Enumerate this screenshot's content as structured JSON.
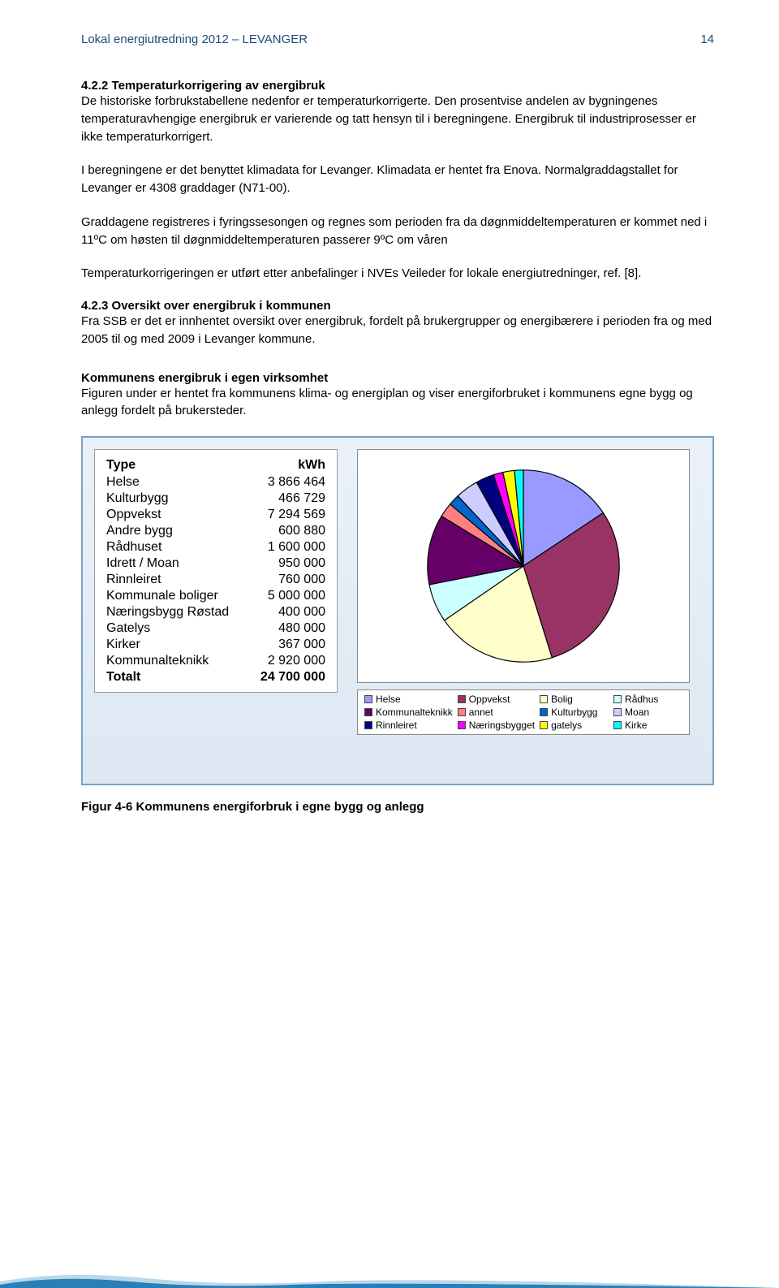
{
  "header": {
    "title": "Lokal energiutredning 2012 – LEVANGER",
    "page": "14"
  },
  "s422": {
    "heading": "4.2.2 Temperaturkorrigering av energibruk",
    "p1": "De historiske forbrukstabellene nedenfor er temperaturkorrigerte. Den prosentvise andelen av bygningenes temperaturavhengige energibruk er varierende og tatt hensyn til i beregningene. Energibruk til industriprosesser er ikke temperaturkorrigert.",
    "p2": "I beregningene er det benyttet klimadata for Levanger. Klimadata er hentet fra Enova. Normalgraddagstallet for Levanger er 4308 graddager (N71-00).",
    "p3a": "Graddagene registreres i fyringssesongen og regnes som perioden fra da døgnmiddeltemperaturen er kommet ned i 11",
    "p3deg1": "º",
    "p3b": "C om høsten til døgnmiddeltemperaturen passerer 9",
    "p3deg2": "º",
    "p3c": "C om våren",
    "p4": "Temperaturkorrigeringen er utført etter anbefalinger i NVEs Veileder for lokale energiutredninger, ref. [8]."
  },
  "s423": {
    "heading": "4.2.3 Oversikt over energibruk i kommunen",
    "p1": "Fra SSB er det er innhentet oversikt over energibruk, fordelt på brukergrupper og energibærere i perioden fra og med 2005 til og med 2009 i Levanger kommune.",
    "sub_heading": "Kommunens energibruk i egen virksomhet",
    "p2": "Figuren under er hentet fra kommunens klima- og energiplan og viser energiforbruket i kommunens egne bygg og anlegg fordelt på brukersteder."
  },
  "table": {
    "col1": "Type",
    "col2": "kWh",
    "rows": [
      {
        "label": "Helse",
        "value": "3 866 464"
      },
      {
        "label": "Kulturbygg",
        "value": "466 729"
      },
      {
        "label": "Oppvekst",
        "value": "7 294 569"
      },
      {
        "label": "Andre bygg",
        "value": "600 880"
      },
      {
        "label": "Rådhuset",
        "value": "1 600 000"
      },
      {
        "label": "Idrett / Moan",
        "value": "950 000"
      },
      {
        "label": "Rinnleiret",
        "value": "760 000"
      },
      {
        "label": "Kommunale boliger",
        "value": "5 000 000"
      },
      {
        "label": "Næringsbygg Røstad",
        "value": "400 000"
      },
      {
        "label": "Gatelys",
        "value": "480 000"
      },
      {
        "label": "Kirker",
        "value": "367 000"
      },
      {
        "label": "Kommunalteknikk",
        "value": "2 920 000"
      }
    ],
    "total_label": "Totalt",
    "total_value": "24 700 000"
  },
  "pie": {
    "type": "pie",
    "total": 24700000,
    "background_color": "#ffffff",
    "border_color": "#888888",
    "stroke": "#000000",
    "stroke_width": 1,
    "slices": [
      {
        "label": "Helse",
        "value": 3866464,
        "color": "#9999ff"
      },
      {
        "label": "Oppvekst",
        "value": 7294569,
        "color": "#993366"
      },
      {
        "label": "Bolig",
        "value": 5000000,
        "color": "#ffffcc"
      },
      {
        "label": "Rådhus",
        "value": 1600000,
        "color": "#ccffff"
      },
      {
        "label": "Kommunalteknikk",
        "value": 2920000,
        "color": "#660066"
      },
      {
        "label": "annet",
        "value": 600880,
        "color": "#ff8080"
      },
      {
        "label": "Kulturbygg",
        "value": 466729,
        "color": "#0066cc"
      },
      {
        "label": "Moan",
        "value": 950000,
        "color": "#ccccff"
      },
      {
        "label": "Rinnleiret",
        "value": 760000,
        "color": "#000080"
      },
      {
        "label": "Næringsbygget",
        "value": 400000,
        "color": "#ff00ff"
      },
      {
        "label": "gatelys",
        "value": 480000,
        "color": "#ffff00"
      },
      {
        "label": "Kirke",
        "value": 367000,
        "color": "#00ffff"
      }
    ]
  },
  "legend": {
    "items": [
      {
        "label": "Helse",
        "color": "#9999ff"
      },
      {
        "label": "Oppvekst",
        "color": "#993366"
      },
      {
        "label": "Bolig",
        "color": "#ffffcc"
      },
      {
        "label": "Rådhus",
        "color": "#ccffff"
      },
      {
        "label": "Kommunalteknikk",
        "color": "#660066"
      },
      {
        "label": "annet",
        "color": "#ff8080"
      },
      {
        "label": "Kulturbygg",
        "color": "#0066cc"
      },
      {
        "label": "Moan",
        "color": "#ccccff"
      },
      {
        "label": "Rinnleiret",
        "color": "#000080"
      },
      {
        "label": "Næringsbygget",
        "color": "#ff00ff"
      },
      {
        "label": "gatelys",
        "color": "#ffff00"
      },
      {
        "label": "Kirke",
        "color": "#00ffff"
      }
    ]
  },
  "figure_caption": "Figur 4-6 Kommunens energiforbruk i egne bygg og anlegg",
  "wave": {
    "color1": "#b8d8ea",
    "color2": "#2a7fb8"
  }
}
